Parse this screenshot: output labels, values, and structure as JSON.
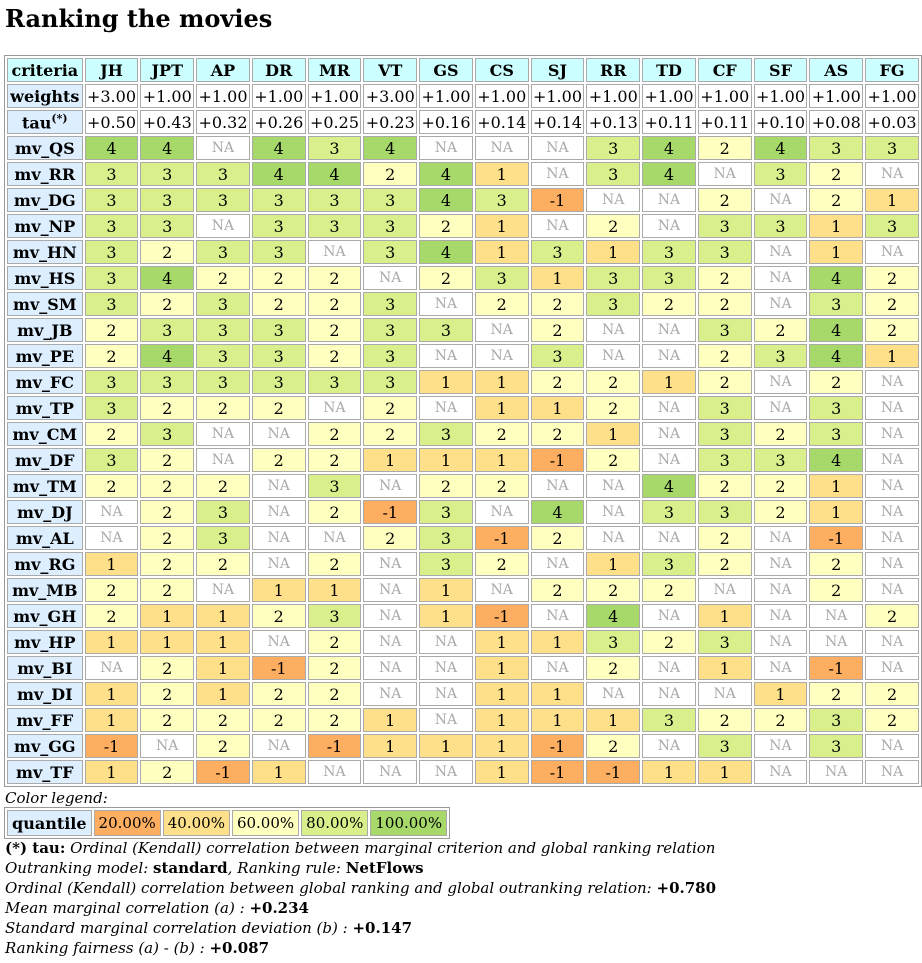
{
  "title": "Ranking the movies",
  "header_label": "criteria",
  "weights_label": "weights",
  "tau_label": "tau",
  "tau_sup": "(*)",
  "criteria": [
    "JH",
    "JPT",
    "AP",
    "DR",
    "MR",
    "VT",
    "GS",
    "CS",
    "SJ",
    "RR",
    "TD",
    "CF",
    "SF",
    "AS",
    "FG"
  ],
  "weights": [
    "+3.00",
    "+1.00",
    "+1.00",
    "+1.00",
    "+1.00",
    "+3.00",
    "+1.00",
    "+1.00",
    "+1.00",
    "+1.00",
    "+1.00",
    "+1.00",
    "+1.00",
    "+1.00",
    "+1.00"
  ],
  "tau": [
    "+0.50",
    "+0.43",
    "+0.32",
    "+0.26",
    "+0.25",
    "+0.23",
    "+0.16",
    "+0.14",
    "+0.14",
    "+0.13",
    "+0.11",
    "+0.11",
    "+0.10",
    "+0.08",
    "+0.03"
  ],
  "rows": [
    {
      "name": "mv_QS",
      "values": [
        "4",
        "4",
        "NA",
        "4",
        "3",
        "4",
        "NA",
        "NA",
        "NA",
        "3",
        "4",
        "2",
        "4",
        "3",
        "3"
      ]
    },
    {
      "name": "mv_RR",
      "values": [
        "3",
        "3",
        "3",
        "4",
        "4",
        "2",
        "4",
        "1",
        "NA",
        "3",
        "4",
        "NA",
        "3",
        "2",
        "NA"
      ]
    },
    {
      "name": "mv_DG",
      "values": [
        "3",
        "3",
        "3",
        "3",
        "3",
        "3",
        "4",
        "3",
        "-1",
        "NA",
        "NA",
        "2",
        "NA",
        "2",
        "1"
      ]
    },
    {
      "name": "mv_NP",
      "values": [
        "3",
        "3",
        "NA",
        "3",
        "3",
        "3",
        "2",
        "1",
        "NA",
        "2",
        "NA",
        "3",
        "3",
        "1",
        "3"
      ]
    },
    {
      "name": "mv_HN",
      "values": [
        "3",
        "2",
        "3",
        "3",
        "NA",
        "3",
        "4",
        "1",
        "3",
        "1",
        "3",
        "3",
        "NA",
        "1",
        "NA"
      ]
    },
    {
      "name": "mv_HS",
      "values": [
        "3",
        "4",
        "2",
        "2",
        "2",
        "NA",
        "2",
        "3",
        "1",
        "3",
        "3",
        "2",
        "NA",
        "4",
        "2"
      ]
    },
    {
      "name": "mv_SM",
      "values": [
        "3",
        "2",
        "3",
        "2",
        "2",
        "3",
        "NA",
        "2",
        "2",
        "3",
        "2",
        "2",
        "NA",
        "3",
        "2"
      ]
    },
    {
      "name": "mv_JB",
      "values": [
        "2",
        "3",
        "3",
        "3",
        "2",
        "3",
        "3",
        "NA",
        "2",
        "NA",
        "NA",
        "3",
        "2",
        "4",
        "2"
      ]
    },
    {
      "name": "mv_PE",
      "values": [
        "2",
        "4",
        "3",
        "3",
        "2",
        "3",
        "NA",
        "NA",
        "3",
        "NA",
        "NA",
        "2",
        "3",
        "4",
        "1"
      ]
    },
    {
      "name": "mv_FC",
      "values": [
        "3",
        "3",
        "3",
        "3",
        "3",
        "3",
        "1",
        "1",
        "2",
        "2",
        "1",
        "2",
        "NA",
        "2",
        "NA"
      ]
    },
    {
      "name": "mv_TP",
      "values": [
        "3",
        "2",
        "2",
        "2",
        "NA",
        "2",
        "NA",
        "1",
        "1",
        "2",
        "NA",
        "3",
        "NA",
        "3",
        "NA"
      ]
    },
    {
      "name": "mv_CM",
      "values": [
        "2",
        "3",
        "NA",
        "NA",
        "2",
        "2",
        "3",
        "2",
        "2",
        "1",
        "NA",
        "3",
        "2",
        "3",
        "NA"
      ]
    },
    {
      "name": "mv_DF",
      "values": [
        "3",
        "2",
        "NA",
        "2",
        "2",
        "1",
        "1",
        "1",
        "-1",
        "2",
        "NA",
        "3",
        "3",
        "4",
        "NA"
      ]
    },
    {
      "name": "mv_TM",
      "values": [
        "2",
        "2",
        "2",
        "NA",
        "3",
        "NA",
        "2",
        "2",
        "NA",
        "NA",
        "4",
        "2",
        "2",
        "1",
        "NA"
      ]
    },
    {
      "name": "mv_DJ",
      "values": [
        "NA",
        "2",
        "3",
        "NA",
        "2",
        "-1",
        "3",
        "NA",
        "4",
        "NA",
        "3",
        "3",
        "2",
        "1",
        "NA"
      ]
    },
    {
      "name": "mv_AL",
      "values": [
        "NA",
        "2",
        "3",
        "NA",
        "NA",
        "2",
        "3",
        "-1",
        "2",
        "NA",
        "NA",
        "2",
        "NA",
        "-1",
        "NA"
      ]
    },
    {
      "name": "mv_RG",
      "values": [
        "1",
        "2",
        "2",
        "NA",
        "2",
        "NA",
        "3",
        "2",
        "NA",
        "1",
        "3",
        "2",
        "NA",
        "2",
        "NA"
      ]
    },
    {
      "name": "mv_MB",
      "values": [
        "2",
        "2",
        "NA",
        "1",
        "1",
        "NA",
        "1",
        "NA",
        "2",
        "2",
        "2",
        "NA",
        "NA",
        "2",
        "NA"
      ]
    },
    {
      "name": "mv_GH",
      "values": [
        "2",
        "1",
        "1",
        "2",
        "3",
        "NA",
        "1",
        "-1",
        "NA",
        "4",
        "NA",
        "1",
        "NA",
        "NA",
        "2"
      ]
    },
    {
      "name": "mv_HP",
      "values": [
        "1",
        "1",
        "1",
        "NA",
        "2",
        "NA",
        "NA",
        "1",
        "1",
        "3",
        "2",
        "3",
        "NA",
        "NA",
        "NA"
      ]
    },
    {
      "name": "mv_BI",
      "values": [
        "NA",
        "2",
        "1",
        "-1",
        "2",
        "NA",
        "NA",
        "1",
        "NA",
        "2",
        "NA",
        "1",
        "NA",
        "-1",
        "NA"
      ]
    },
    {
      "name": "mv_DI",
      "values": [
        "1",
        "2",
        "1",
        "2",
        "2",
        "NA",
        "NA",
        "1",
        "1",
        "NA",
        "NA",
        "NA",
        "1",
        "2",
        "2"
      ]
    },
    {
      "name": "mv_FF",
      "values": [
        "1",
        "2",
        "2",
        "2",
        "2",
        "1",
        "NA",
        "1",
        "1",
        "1",
        "3",
        "2",
        "2",
        "3",
        "2"
      ]
    },
    {
      "name": "mv_GG",
      "values": [
        "-1",
        "NA",
        "2",
        "NA",
        "-1",
        "1",
        "1",
        "1",
        "-1",
        "2",
        "NA",
        "3",
        "NA",
        "3",
        "NA"
      ]
    },
    {
      "name": "mv_TF",
      "values": [
        "1",
        "2",
        "-1",
        "1",
        "NA",
        "NA",
        "NA",
        "1",
        "-1",
        "-1",
        "1",
        "1",
        "NA",
        "NA",
        "NA"
      ]
    }
  ],
  "value_colors": {
    "-1": "#fdae61",
    "1": "#fee08b",
    "2": "#ffffbf",
    "3": "#d9ef8b",
    "4": "#a6d96a"
  },
  "legend": {
    "caption": "Color legend:",
    "label": "quantile",
    "items": [
      {
        "label": "20.00%",
        "color": "#fdae61"
      },
      {
        "label": "40.00%",
        "color": "#fee08b"
      },
      {
        "label": "60.00%",
        "color": "#ffffbf"
      },
      {
        "label": "80.00%",
        "color": "#d9ef8b"
      },
      {
        "label": "100.00%",
        "color": "#a6d96a"
      }
    ]
  },
  "notes": {
    "tau_prefix": "(*) tau:",
    "tau_text": " Ordinal (Kendall) correlation between marginal criterion and global ranking relation",
    "model_label": "Outranking model",
    "model_value": "standard",
    "rule_label": "Ranking rule",
    "rule_value": "NetFlows",
    "corr_label": "Ordinal (Kendall) correlation between global ranking and global outranking relation:",
    "corr_value": "+0.780",
    "mean_label": "Mean marginal correlation (a) :",
    "mean_value": "+0.234",
    "std_label": "Standard marginal correlation deviation (b) :",
    "std_value": "+0.147",
    "fair_label": "Ranking fairness (a) - (b) :",
    "fair_value": "+0.087"
  }
}
